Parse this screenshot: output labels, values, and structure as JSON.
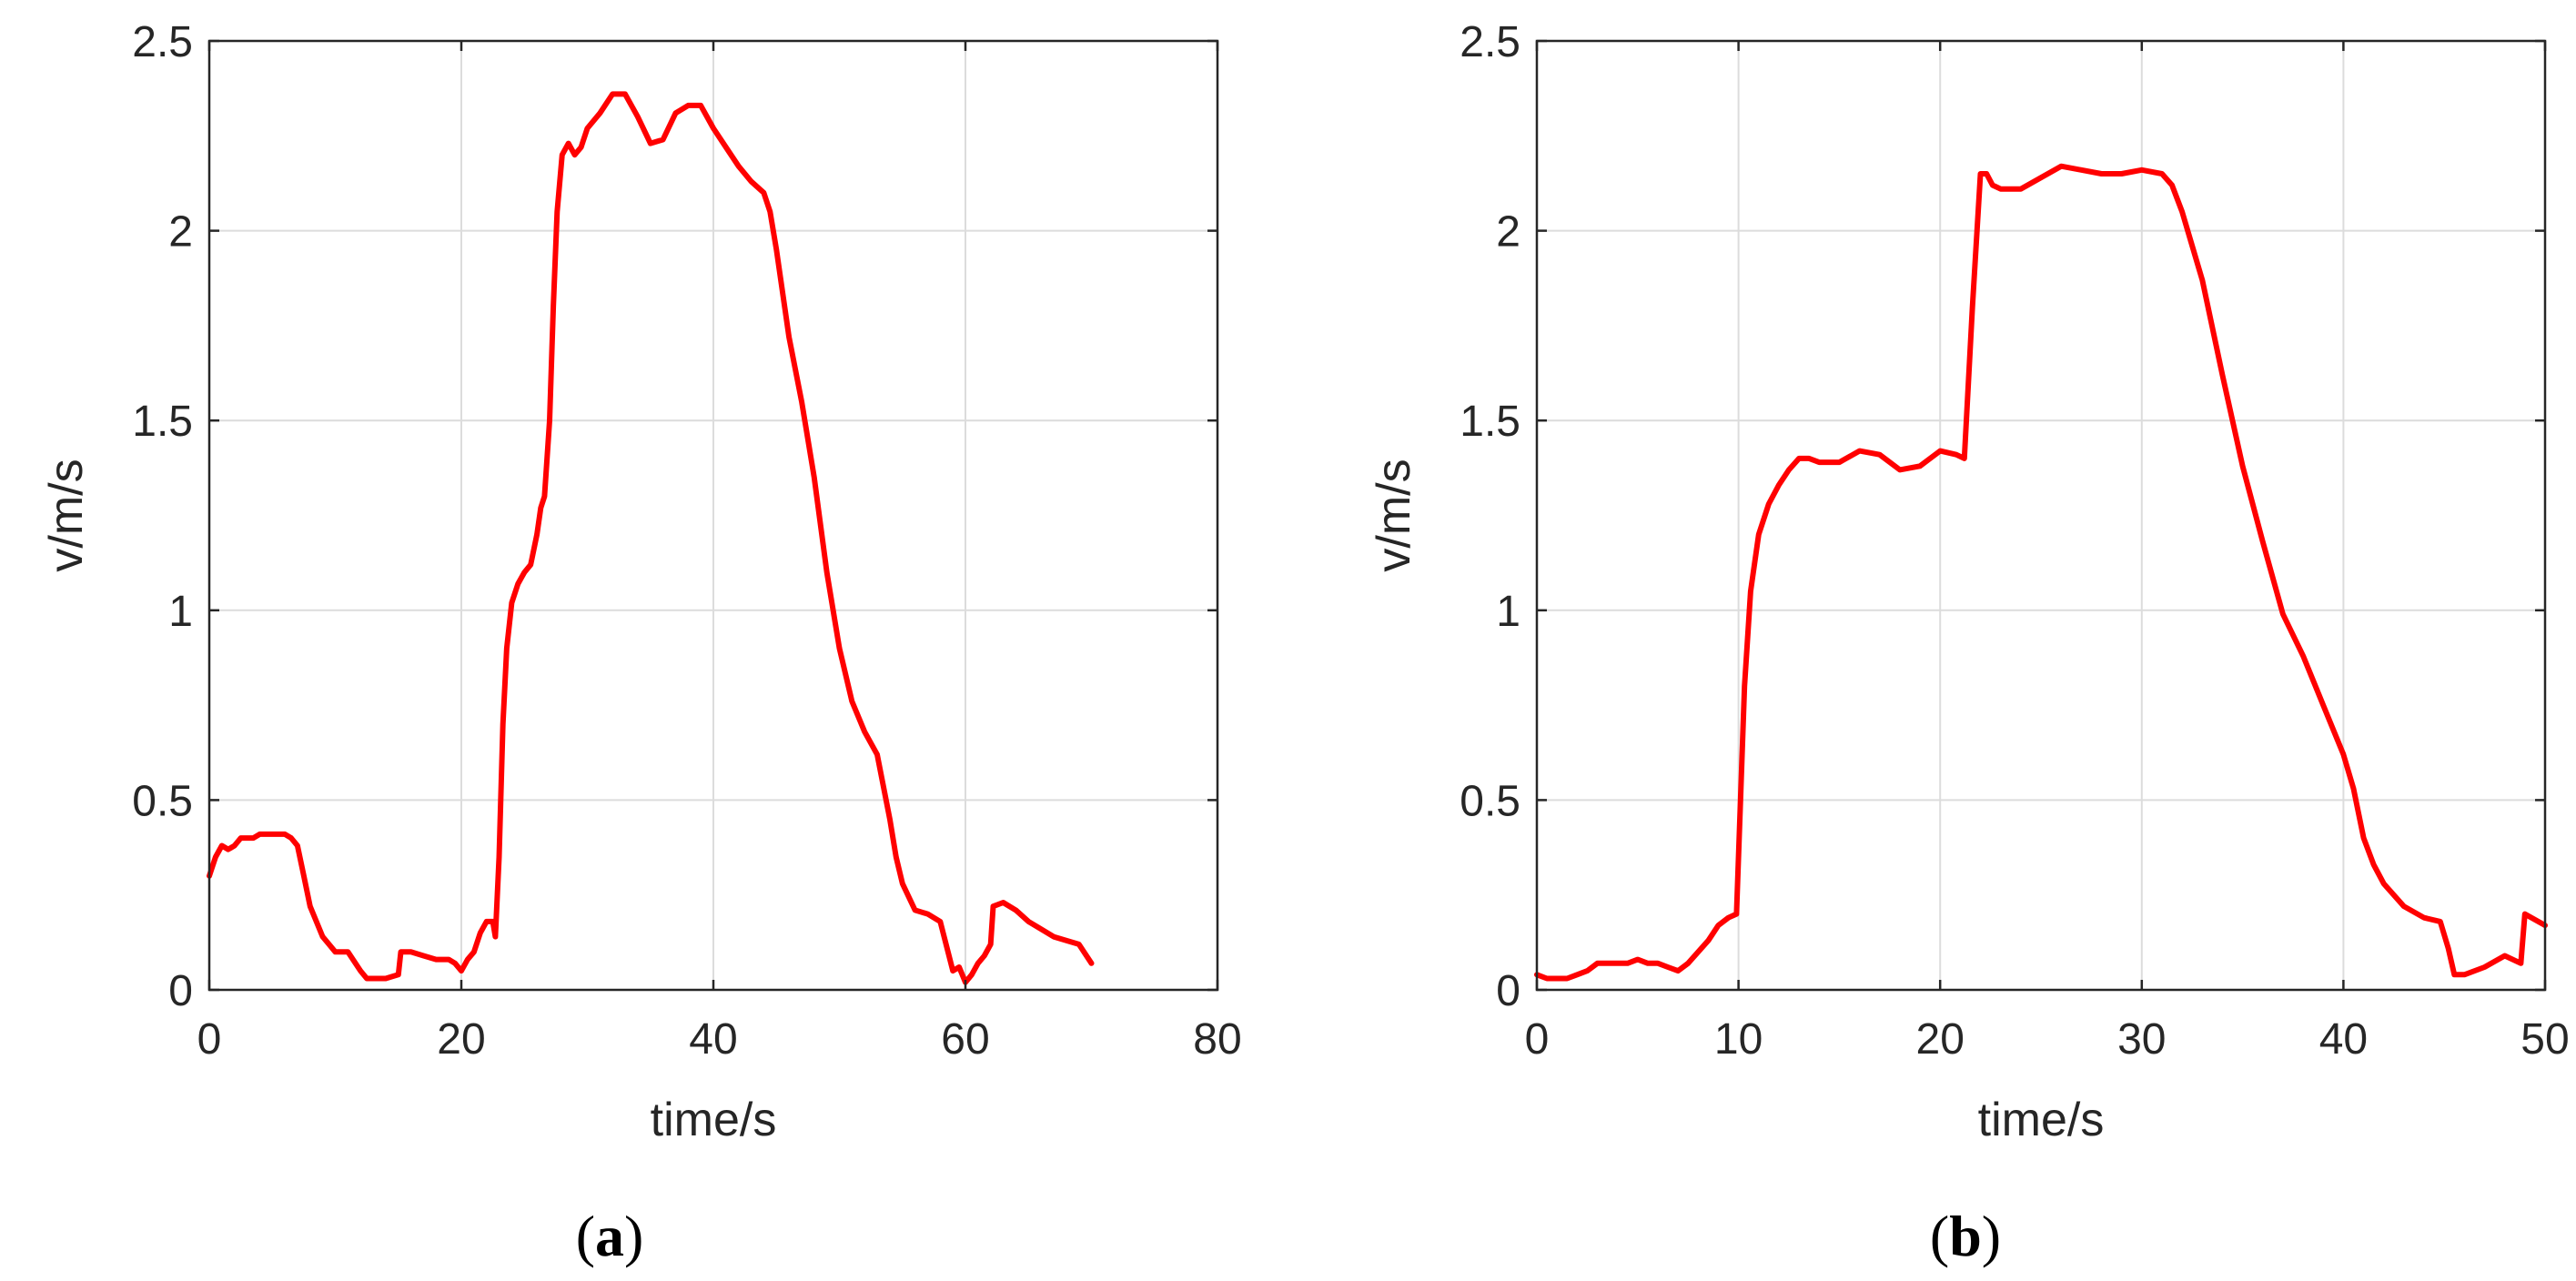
{
  "chart_data": [
    {
      "type": "line",
      "panel_label": "a",
      "title": "",
      "xlabel": "time/s",
      "ylabel": "v/m/s",
      "xlim": [
        0,
        80
      ],
      "ylim": [
        0,
        2.5
      ],
      "xticks": [
        0,
        20,
        40,
        60,
        80
      ],
      "yticks": [
        0,
        0.5,
        1,
        1.5,
        2,
        2.5
      ],
      "xtick_labels": [
        "0",
        "20",
        "40",
        "60",
        "80"
      ],
      "ytick_labels": [
        "0",
        "0.5",
        "1",
        "1.5",
        "2",
        "2.5"
      ],
      "grid": true,
      "series": [
        {
          "color": "#ff0000",
          "x": [
            0,
            0.5,
            1,
            1.5,
            2,
            2.5,
            3,
            3.5,
            4,
            5,
            6,
            6.5,
            7,
            7.5,
            8,
            8.5,
            9,
            9.5,
            10,
            11,
            12,
            12.5,
            13,
            14,
            15,
            15.2,
            16,
            17,
            18,
            19,
            19.5,
            20,
            20.5,
            21,
            21.5,
            22,
            22.5,
            22.7,
            23,
            23.3,
            23.6,
            24,
            24.5,
            25,
            25.5,
            26,
            26.3,
            26.6,
            27,
            27.3,
            27.6,
            28,
            28.5,
            29,
            29.5,
            30,
            31,
            32,
            33,
            34,
            35,
            36,
            37,
            38,
            39,
            40,
            41,
            42,
            43,
            44,
            44.5,
            45,
            46,
            47,
            48,
            49,
            50,
            51,
            52,
            53,
            54,
            54.5,
            55,
            56,
            57,
            58,
            59,
            59.5,
            60,
            60.5,
            61,
            61.5,
            62,
            62.2,
            63,
            64,
            65,
            66,
            67,
            68,
            69,
            70
          ],
          "y": [
            0.3,
            0.35,
            0.38,
            0.37,
            0.38,
            0.4,
            0.4,
            0.4,
            0.41,
            0.41,
            0.41,
            0.4,
            0.38,
            0.3,
            0.22,
            0.18,
            0.14,
            0.12,
            0.1,
            0.1,
            0.05,
            0.03,
            0.03,
            0.03,
            0.04,
            0.1,
            0.1,
            0.09,
            0.08,
            0.08,
            0.07,
            0.05,
            0.08,
            0.1,
            0.15,
            0.18,
            0.18,
            0.14,
            0.35,
            0.7,
            0.9,
            1.02,
            1.07,
            1.1,
            1.12,
            1.2,
            1.27,
            1.3,
            1.5,
            1.8,
            2.05,
            2.2,
            2.23,
            2.2,
            2.22,
            2.27,
            2.31,
            2.36,
            2.36,
            2.3,
            2.23,
            2.24,
            2.31,
            2.33,
            2.33,
            2.27,
            2.22,
            2.17,
            2.13,
            2.1,
            2.05,
            1.95,
            1.72,
            1.55,
            1.35,
            1.1,
            0.9,
            0.76,
            0.68,
            0.62,
            0.45,
            0.35,
            0.28,
            0.21,
            0.2,
            0.18,
            0.05,
            0.06,
            0.02,
            0.04,
            0.07,
            0.09,
            0.12,
            0.22,
            0.23,
            0.21,
            0.18,
            0.16,
            0.14,
            0.13,
            0.12,
            0.07
          ]
        }
      ]
    },
    {
      "type": "line",
      "panel_label": "b",
      "title": "",
      "xlabel": "time/s",
      "ylabel": "v/m/s",
      "xlim": [
        0,
        50
      ],
      "ylim": [
        0,
        2.5
      ],
      "xticks": [
        0,
        10,
        20,
        30,
        40,
        50
      ],
      "yticks": [
        0,
        0.5,
        1,
        1.5,
        2,
        2.5
      ],
      "xtick_labels": [
        "0",
        "10",
        "20",
        "30",
        "40",
        "50"
      ],
      "ytick_labels": [
        "0",
        "0.5",
        "1",
        "1.5",
        "2",
        "2.5"
      ],
      "grid": true,
      "series": [
        {
          "color": "#ff0000",
          "x": [
            0,
            0.5,
            1,
            1.5,
            2,
            2.5,
            3,
            3.5,
            4,
            4.5,
            5,
            5.5,
            6,
            6.5,
            7,
            7.5,
            8,
            8.5,
            9,
            9.5,
            9.9,
            10.1,
            10.3,
            10.6,
            11,
            11.5,
            12,
            12.5,
            13,
            13.5,
            14,
            15,
            16,
            17,
            18,
            19,
            20,
            20.8,
            21.2,
            21.6,
            22,
            22.3,
            22.6,
            23,
            24,
            25,
            26,
            27,
            28,
            29,
            30,
            31,
            31.5,
            32,
            33,
            34,
            35,
            36,
            37,
            38,
            39,
            40,
            40.5,
            41,
            41.5,
            42,
            43,
            44,
            44.8,
            45.2,
            45.5,
            46,
            47,
            48,
            48.8,
            49,
            50
          ],
          "y": [
            0.04,
            0.03,
            0.03,
            0.03,
            0.04,
            0.05,
            0.07,
            0.07,
            0.07,
            0.07,
            0.08,
            0.07,
            0.07,
            0.06,
            0.05,
            0.07,
            0.1,
            0.13,
            0.17,
            0.19,
            0.2,
            0.5,
            0.8,
            1.05,
            1.2,
            1.28,
            1.33,
            1.37,
            1.4,
            1.4,
            1.39,
            1.39,
            1.42,
            1.41,
            1.37,
            1.38,
            1.42,
            1.41,
            1.4,
            1.8,
            2.15,
            2.15,
            2.12,
            2.11,
            2.11,
            2.14,
            2.17,
            2.16,
            2.15,
            2.15,
            2.16,
            2.15,
            2.12,
            2.05,
            1.87,
            1.62,
            1.38,
            1.18,
            0.99,
            0.88,
            0.75,
            0.62,
            0.53,
            0.4,
            0.33,
            0.28,
            0.22,
            0.19,
            0.18,
            0.11,
            0.04,
            0.04,
            0.06,
            0.09,
            0.07,
            0.2,
            0.17
          ]
        }
      ]
    }
  ]
}
